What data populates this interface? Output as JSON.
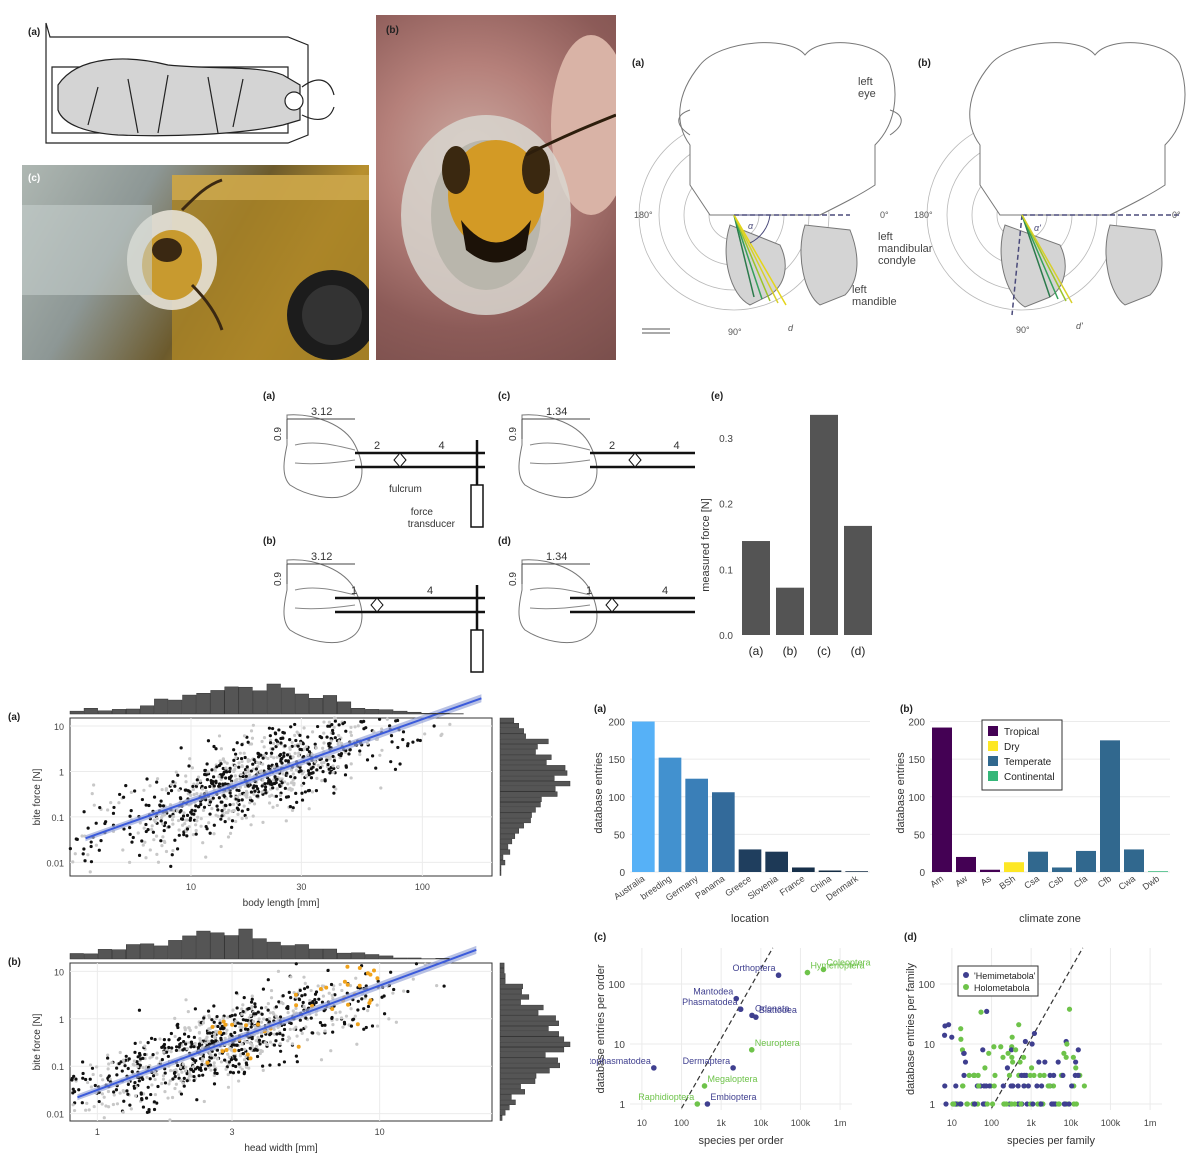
{
  "fig1": {
    "labels": {
      "a": "(a)",
      "b": "(b)",
      "c": "(c)"
    }
  },
  "fig2": {
    "labels": {
      "a": "(a)",
      "b": "(b)"
    },
    "annotations": {
      "left_eye": "left",
      "left_eye2": "eye",
      "condyle1": "left",
      "condyle2": "mandibular",
      "condyle3": "condyle",
      "mandible1": "left",
      "mandible2": "mandible"
    },
    "angles": {
      "a180": "180°",
      "a0": "0°",
      "a90": "90°",
      "b180": "180°",
      "b0": "0°",
      "b90": "90°"
    },
    "symbols": {
      "alpha": "α",
      "alpha_prime": "α'",
      "d": "d",
      "d_prime": "d'"
    }
  },
  "fig3": {
    "labels": {
      "a": "(a)",
      "b": "(b)",
      "c": "(c)",
      "d": "(d)",
      "e": "(e)"
    },
    "dims": {
      "a_top": "3.12",
      "a_side": "0.9",
      "a_l1": "2",
      "a_l2": "4",
      "b_top": "3.12",
      "b_side": "0.9",
      "b_l1": "1",
      "b_l2": "4",
      "c_top": "1.34",
      "c_side": "0.9",
      "c_l1": "2",
      "c_l2": "4",
      "d_top": "1.34",
      "d_side": "0.9",
      "d_l1": "1",
      "d_l2": "4"
    },
    "annotations": {
      "fulcrum": "fulcrum",
      "force1": "force",
      "force2": "transducer"
    },
    "chart": {
      "ylabel": "measured force [N]",
      "categories": [
        "(a)",
        "(b)",
        "(c)",
        "(d)"
      ],
      "yticks": [
        "0.0",
        "0.1",
        "0.2",
        "0.3"
      ]
    }
  },
  "fig4": {
    "labels": {
      "a": "(a)",
      "b": "(b)"
    },
    "a": {
      "xlabel": "body length [mm]",
      "ylabel": "bite force [N]",
      "xticks": [
        "10",
        "30",
        "100"
      ],
      "yticks": [
        "10",
        "1",
        "0.1",
        "0.01"
      ]
    },
    "b": {
      "xlabel": "head width [mm]",
      "ylabel": "bite force [N]",
      "xticks": [
        "1",
        "3",
        "10"
      ],
      "yticks": [
        "10",
        "1",
        "0.1",
        "0.01"
      ]
    }
  },
  "fig5": {
    "labels": {
      "a": "(a)",
      "b": "(b)",
      "c": "(c)",
      "d": "(d)"
    },
    "a": {
      "xlabel": "location",
      "ylabel": "database entries",
      "yticks": [
        "0",
        "50",
        "100",
        "150",
        "200"
      ]
    },
    "b": {
      "xlabel": "climate zone",
      "ylabel": "database entries",
      "yticks": [
        "0",
        "50",
        "100",
        "150",
        "200"
      ]
    },
    "c": {
      "xlabel": "species per order",
      "ylabel": "database entries per order",
      "xticks": [
        "10",
        "100",
        "1k",
        "10k",
        "100k",
        "1m"
      ],
      "yticks": [
        "1",
        "10",
        "100"
      ]
    },
    "d": {
      "xlabel": "species per family",
      "ylabel": "database entries per family",
      "xticks": [
        "10",
        "100",
        "1k",
        "10k",
        "100k",
        "1m"
      ],
      "yticks": [
        "1",
        "10",
        "100"
      ],
      "legend": [
        "'Hemimetabola'",
        "Holometabola"
      ]
    }
  },
  "chart_data": [
    {
      "id": "fig3e",
      "type": "bar",
      "categories": [
        "(a)",
        "(b)",
        "(c)",
        "(d)"
      ],
      "values": [
        0.143,
        0.072,
        0.335,
        0.166
      ],
      "ylabel": "measured force [N]",
      "ylim": [
        0,
        0.35
      ],
      "color": "#545454"
    },
    {
      "id": "fig5a",
      "type": "bar",
      "categories": [
        "Australia",
        "breeding",
        "Germany",
        "Panama",
        "Greece",
        "Slovenia",
        "France",
        "China",
        "Denmark"
      ],
      "values": [
        200,
        152,
        124,
        106,
        30,
        27,
        6,
        2,
        1
      ],
      "colors": [
        "#56b1f7",
        "#4291cf",
        "#3a7fb8",
        "#336a9a",
        "#1f3e5e",
        "#1d3956",
        "#17304a",
        "#132b43",
        "#132b43"
      ],
      "xlabel": "location",
      "ylabel": "database entries",
      "ylim": [
        0,
        210
      ]
    },
    {
      "id": "fig5b",
      "type": "bar",
      "categories": [
        "Am",
        "Aw",
        "As",
        "BSh",
        "Csa",
        "Csb",
        "Cfa",
        "Cfb",
        "Cwa",
        "Dwb"
      ],
      "values": [
        192,
        20,
        3,
        13,
        27,
        6,
        28,
        175,
        30,
        1
      ],
      "groups": [
        "Tropical",
        "Tropical",
        "Tropical",
        "Dry",
        "Temperate",
        "Temperate",
        "Temperate",
        "Temperate",
        "Temperate",
        "Continental"
      ],
      "legend": {
        "Tropical": "#440154",
        "Dry": "#fde725",
        "Temperate": "#31688e",
        "Continental": "#35b779"
      },
      "xlabel": "climate zone",
      "ylabel": "database entries",
      "ylim": [
        0,
        210
      ]
    },
    {
      "id": "fig5c",
      "type": "scatter",
      "xlabel": "species per order",
      "ylabel": "database entries per order",
      "xscale": "log",
      "yscale": "log",
      "points": [
        {
          "name": "Orthoptera",
          "x": 28000,
          "y": 140,
          "group": "Hemimetabola"
        },
        {
          "name": "Coleoptera",
          "x": 380000,
          "y": 175,
          "group": "Holometabola"
        },
        {
          "name": "Hymenoptera",
          "x": 150000,
          "y": 155,
          "group": "Holometabola"
        },
        {
          "name": "Mantodea",
          "x": 2400,
          "y": 57,
          "group": "Hemimetabola"
        },
        {
          "name": "Phasmatodea",
          "x": 3100,
          "y": 38,
          "group": "Hemimetabola"
        },
        {
          "name": "Odonata",
          "x": 6000,
          "y": 30,
          "group": "Hemimetabola"
        },
        {
          "name": "Blattodea",
          "x": 7500,
          "y": 28,
          "group": "Hemimetabola"
        },
        {
          "name": "Neuroptera",
          "x": 5900,
          "y": 8,
          "group": "Holometabola"
        },
        {
          "name": "Mantophasmatodea",
          "x": 20,
          "y": 4,
          "group": "Hemimetabola"
        },
        {
          "name": "Dermaptera",
          "x": 2000,
          "y": 4,
          "group": "Hemimetabola"
        },
        {
          "name": "Megaloptera",
          "x": 380,
          "y": 2,
          "group": "Holometabola"
        },
        {
          "name": "Raphidioptera",
          "x": 250,
          "y": 1,
          "group": "Holometabola"
        },
        {
          "name": "Embioptera",
          "x": 450,
          "y": 1,
          "group": "Hemimetabola"
        }
      ]
    },
    {
      "id": "fig5d",
      "type": "scatter",
      "xlabel": "species per family",
      "ylabel": "database entries per family",
      "xscale": "log",
      "yscale": "log",
      "series": [
        {
          "name": "'Hemimetabola'",
          "color": "#3f3f8f"
        },
        {
          "name": "Holometabola",
          "color": "#6ec34a"
        }
      ]
    },
    {
      "id": "fig4a",
      "type": "scatter",
      "xlabel": "body length [mm]",
      "ylabel": "bite force [N]",
      "xscale": "log",
      "yscale": "log",
      "xlim": [
        3,
        200
      ],
      "ylim": [
        0.005,
        15
      ]
    },
    {
      "id": "fig4b",
      "type": "scatter",
      "xlabel": "head width [mm]",
      "ylabel": "bite force [N]",
      "xscale": "log",
      "yscale": "log",
      "xlim": [
        0.8,
        25
      ],
      "ylim": [
        0.007,
        15
      ]
    }
  ]
}
